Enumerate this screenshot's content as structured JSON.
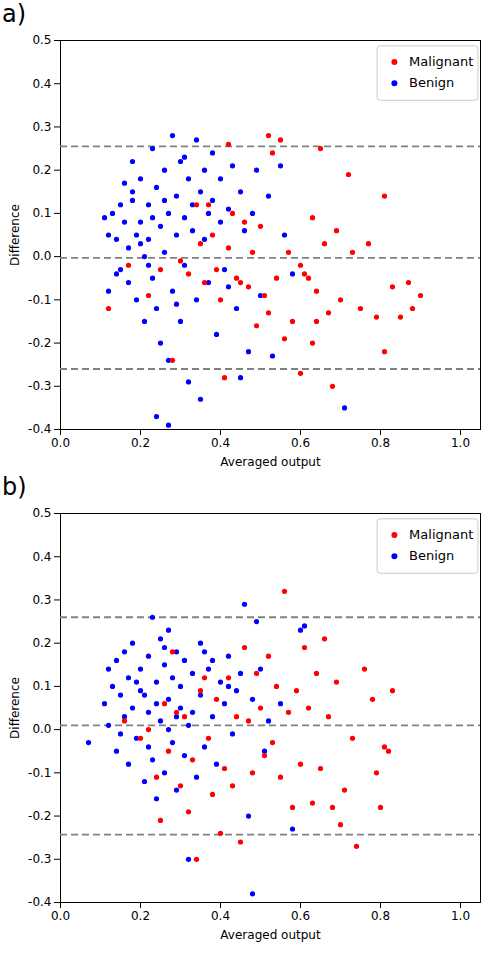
{
  "chart_data": [
    {
      "type": "scatter",
      "title": "a)",
      "xlabel": "Averaged output",
      "ylabel": "Difference",
      "xlim": [
        0,
        1.05
      ],
      "ylim": [
        -0.4,
        0.5
      ],
      "xticks": [
        {
          "value": 0,
          "label": "0.0"
        },
        0.2,
        0.4,
        0.6,
        0.8,
        {
          "value": 1,
          "label": "1.0"
        }
      ],
      "yticks": [
        -0.4,
        -0.3,
        -0.2,
        -0.1,
        {
          "value": 0,
          "label": "0.0"
        },
        0.1,
        0.2,
        0.3,
        0.4,
        0.5
      ],
      "grid": false,
      "legend": "upper right",
      "reference_lines": {
        "values": [
          0.255,
          -0.003,
          -0.26
        ],
        "color": "#808080",
        "line_style": "dashed"
      },
      "series": [
        {
          "name": "Malignant",
          "color": "#ff0000",
          "marker": "circle",
          "x": [
            0.12,
            0.17,
            0.22,
            0.25,
            0.28,
            0.3,
            0.32,
            0.34,
            0.35,
            0.36,
            0.37,
            0.38,
            0.39,
            0.4,
            0.41,
            0.42,
            0.42,
            0.43,
            0.44,
            0.45,
            0.46,
            0.47,
            0.48,
            0.49,
            0.5,
            0.51,
            0.52,
            0.52,
            0.53,
            0.54,
            0.55,
            0.56,
            0.57,
            0.58,
            0.6,
            0.61,
            0.62,
            0.63,
            0.63,
            0.64,
            0.65,
            0.66,
            0.67,
            0.68,
            0.69,
            0.7,
            0.72,
            0.73,
            0.75,
            0.77,
            0.79,
            0.81,
            0.81,
            0.83,
            0.85,
            0.87,
            0.88,
            0.9,
            0.6,
            0.64
          ],
          "values": [
            -0.12,
            -0.02,
            -0.09,
            -0.03,
            -0.24,
            -0.01,
            -0.04,
            0.12,
            0.03,
            -0.06,
            0.12,
            0.05,
            -0.03,
            -0.1,
            -0.28,
            0.26,
            0.02,
            0.1,
            -0.05,
            -0.06,
            0.08,
            -0.07,
            0.01,
            -0.16,
            0.07,
            -0.09,
            0.28,
            -0.13,
            0.24,
            -0.05,
            0.27,
            -0.19,
            0.01,
            -0.15,
            -0.27,
            -0.04,
            -0.05,
            0.09,
            -0.2,
            -0.15,
            0.25,
            0.03,
            -0.13,
            -0.3,
            0.06,
            -0.1,
            0.19,
            0.01,
            -0.12,
            0.03,
            -0.14,
            0.14,
            -0.22,
            -0.07,
            -0.14,
            -0.06,
            -0.12,
            -0.09,
            -0.02,
            -0.08
          ]
        },
        {
          "name": "Benign",
          "color": "#0000ff",
          "marker": "circle",
          "x": [
            0.11,
            0.12,
            0.13,
            0.12,
            0.14,
            0.15,
            0.15,
            0.16,
            0.16,
            0.17,
            0.17,
            0.18,
            0.18,
            0.19,
            0.19,
            0.2,
            0.2,
            0.21,
            0.21,
            0.22,
            0.22,
            0.23,
            0.23,
            0.24,
            0.24,
            0.25,
            0.25,
            0.26,
            0.26,
            0.27,
            0.27,
            0.28,
            0.28,
            0.29,
            0.29,
            0.3,
            0.3,
            0.31,
            0.31,
            0.32,
            0.32,
            0.33,
            0.33,
            0.34,
            0.34,
            0.35,
            0.35,
            0.36,
            0.36,
            0.37,
            0.38,
            0.38,
            0.39,
            0.4,
            0.4,
            0.41,
            0.42,
            0.43,
            0.44,
            0.45,
            0.46,
            0.47,
            0.48,
            0.49,
            0.5,
            0.52,
            0.55,
            0.56,
            0.58,
            0.24,
            0.27,
            0.45,
            0.71,
            0.2,
            0.23,
            0.26,
            0.29,
            0.22,
            0.18,
            0.31,
            0.14,
            0.37,
            0.42,
            0.53
          ],
          "values": [
            0.09,
            0.05,
            0.1,
            -0.08,
            0.04,
            0.12,
            -0.03,
            0.08,
            0.17,
            0.02,
            -0.06,
            0.13,
            0.22,
            0.05,
            -0.1,
            0.08,
            0.18,
            0,
            -0.15,
            0.12,
            0.04,
            0.25,
            -0.05,
            0.16,
            -0.12,
            0.07,
            -0.2,
            0.2,
            0.01,
            -0.24,
            0.1,
            0.28,
            -0.08,
            0.14,
            0.05,
            0.22,
            -0.15,
            0.09,
            -0.02,
            0.18,
            -0.29,
            0.12,
            0.06,
            0.27,
            -0.1,
            0.15,
            -0.33,
            0.2,
            0.04,
            -0.06,
            0.13,
            0.24,
            -0.18,
            0.08,
            0.18,
            -0.03,
            0.11,
            0.21,
            -0.12,
            0.15,
            0.06,
            -0.22,
            0.1,
            0.2,
            -0.09,
            0.14,
            0.21,
            0.05,
            -0.04,
            -0.37,
            -0.39,
            -0.28,
            -0.35,
            0.03,
            0.09,
            0.13,
            -0.11,
            -0.02,
            0.15,
            0.23,
            -0.04,
            0.1,
            -0.07,
            -0.23
          ]
        }
      ]
    },
    {
      "type": "scatter",
      "title": "b)",
      "xlabel": "Averaged output",
      "ylabel": "Difference",
      "xlim": [
        0,
        1.05
      ],
      "ylim": [
        -0.4,
        0.5
      ],
      "xticks": [
        {
          "value": 0,
          "label": "0.0"
        },
        0.2,
        0.4,
        0.6,
        0.8,
        {
          "value": 1,
          "label": "1.0"
        }
      ],
      "yticks": [
        -0.4,
        -0.3,
        -0.2,
        -0.1,
        {
          "value": 0,
          "label": "0.0"
        },
        0.1,
        0.2,
        0.3,
        0.4,
        0.5
      ],
      "grid": false,
      "legend": "upper right",
      "reference_lines": {
        "values": [
          0.26,
          0.01,
          -0.243
        ],
        "color": "#808080",
        "line_style": "dashed"
      },
      "series": [
        {
          "name": "Malignant",
          "color": "#ff0000",
          "marker": "circle",
          "x": [
            0.16,
            0.2,
            0.22,
            0.24,
            0.25,
            0.26,
            0.27,
            0.28,
            0.29,
            0.3,
            0.31,
            0.32,
            0.33,
            0.34,
            0.35,
            0.36,
            0.37,
            0.38,
            0.39,
            0.4,
            0.41,
            0.42,
            0.43,
            0.44,
            0.45,
            0.46,
            0.47,
            0.48,
            0.49,
            0.5,
            0.51,
            0.52,
            0.53,
            0.54,
            0.55,
            0.56,
            0.57,
            0.58,
            0.59,
            0.6,
            0.61,
            0.62,
            0.63,
            0.64,
            0.65,
            0.66,
            0.67,
            0.68,
            0.69,
            0.7,
            0.71,
            0.73,
            0.74,
            0.76,
            0.78,
            0.79,
            0.8,
            0.81,
            0.82,
            0.83
          ],
          "values": [
            0.02,
            -0.02,
            0,
            -0.11,
            -0.21,
            0.06,
            -0.05,
            0.18,
            0.04,
            -0.13,
            0.03,
            -0.19,
            -0.07,
            -0.3,
            0.09,
            0.12,
            -0.02,
            -0.15,
            0.07,
            -0.24,
            -0.09,
            0.12,
            -0.13,
            0.03,
            -0.26,
            0.19,
            0.02,
            -0.1,
            0.13,
            0.05,
            -0.06,
            0.17,
            -0.03,
            0.1,
            -0.11,
            0.32,
            0.04,
            -0.18,
            0.09,
            -0.08,
            0.19,
            0.05,
            -0.17,
            0.13,
            -0.09,
            0.21,
            0.03,
            -0.18,
            0.11,
            -0.22,
            -0.14,
            -0.02,
            -0.27,
            0.14,
            0.07,
            -0.1,
            -0.18,
            -0.04,
            -0.05,
            0.09
          ]
        },
        {
          "name": "Benign",
          "color": "#0000ff",
          "marker": "circle",
          "x": [
            0.07,
            0.11,
            0.12,
            0.12,
            0.13,
            0.14,
            0.14,
            0.15,
            0.16,
            0.16,
            0.17,
            0.17,
            0.18,
            0.18,
            0.19,
            0.2,
            0.2,
            0.21,
            0.22,
            0.22,
            0.23,
            0.23,
            0.24,
            0.24,
            0.25,
            0.25,
            0.26,
            0.26,
            0.27,
            0.27,
            0.28,
            0.28,
            0.29,
            0.29,
            0.3,
            0.3,
            0.31,
            0.31,
            0.32,
            0.32,
            0.33,
            0.34,
            0.35,
            0.35,
            0.36,
            0.37,
            0.38,
            0.39,
            0.4,
            0.41,
            0.42,
            0.43,
            0.44,
            0.45,
            0.46,
            0.47,
            0.48,
            0.49,
            0.5,
            0.52,
            0.55,
            0.58,
            0.6,
            0.61,
            0.48,
            0.21,
            0.24,
            0.27,
            0.33,
            0.19,
            0.15,
            0.36,
            0.42,
            0.29,
            0.22,
            0.51,
            0.38,
            0.26
          ],
          "values": [
            -0.03,
            0.06,
            0.14,
            0.01,
            0.1,
            0.16,
            -0.05,
            0.08,
            0.03,
            0.18,
            0.12,
            -0.08,
            0.05,
            0.2,
            -0.02,
            0.14,
            0.09,
            -0.12,
            0.17,
            0.04,
            0.26,
            -0.07,
            0.11,
            -0.16,
            0.21,
            0.02,
            0.15,
            -0.1,
            0.07,
            0.23,
            -0.03,
            0.12,
            0.18,
            -0.14,
            0.05,
            0.1,
            -0.06,
            0.16,
            0.01,
            -0.3,
            0.13,
            -0.11,
            0.08,
            0.2,
            -0.04,
            0.14,
            0.03,
            -0.08,
            0.11,
            0.06,
            0.17,
            -0.01,
            0.09,
            0.13,
            0.29,
            -0.2,
            0.07,
            0.25,
            0.14,
            0.02,
            0.06,
            -0.23,
            0.23,
            0.24,
            -0.38,
            0.08,
            0.06,
            0,
            0.04,
            0.11,
            -0.01,
            0.18,
            0.1,
            0.03,
            -0.04,
            -0.05,
            0.16,
            0.19
          ]
        }
      ]
    }
  ]
}
